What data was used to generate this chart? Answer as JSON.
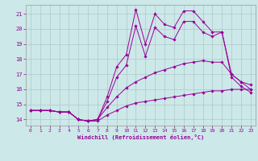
{
  "background_color": "#cce8e8",
  "grid_color": "#b0c8c8",
  "line_color": "#990099",
  "xlabel": "Windchill (Refroidissement éolien,°C)",
  "ylim": [
    13.6,
    21.6
  ],
  "xlim": [
    -0.5,
    23.5
  ],
  "yticks": [
    14,
    15,
    16,
    17,
    18,
    19,
    20,
    21
  ],
  "xticks": [
    0,
    1,
    2,
    3,
    4,
    5,
    6,
    7,
    8,
    9,
    10,
    11,
    12,
    13,
    14,
    15,
    16,
    17,
    18,
    19,
    20,
    21,
    22,
    23
  ],
  "series": [
    {
      "x": [
        0,
        1,
        2,
        3,
        4,
        5,
        6,
        7,
        8,
        9,
        10,
        11,
        12,
        13,
        14,
        15,
        16,
        17,
        18,
        19,
        20,
        21,
        22,
        23
      ],
      "y": [
        14.6,
        14.6,
        14.6,
        14.5,
        14.5,
        14.0,
        13.9,
        13.9,
        14.3,
        14.6,
        14.9,
        15.1,
        15.2,
        15.3,
        15.4,
        15.5,
        15.6,
        15.7,
        15.8,
        15.9,
        15.9,
        16.0,
        16.0,
        16.0
      ]
    },
    {
      "x": [
        0,
        1,
        2,
        3,
        4,
        5,
        6,
        7,
        8,
        9,
        10,
        11,
        12,
        13,
        14,
        15,
        16,
        17,
        18,
        19,
        20,
        21,
        22,
        23
      ],
      "y": [
        14.6,
        14.6,
        14.6,
        14.5,
        14.5,
        14.0,
        13.9,
        14.0,
        14.8,
        15.5,
        16.1,
        16.5,
        16.8,
        17.1,
        17.3,
        17.5,
        17.7,
        17.8,
        17.9,
        17.8,
        17.8,
        17.0,
        16.5,
        16.3
      ]
    },
    {
      "x": [
        0,
        1,
        2,
        3,
        4,
        5,
        6,
        7,
        8,
        9,
        10,
        11,
        12,
        13,
        14,
        15,
        16,
        17,
        18,
        19,
        20,
        21,
        22,
        23
      ],
      "y": [
        14.6,
        14.6,
        14.6,
        14.5,
        14.5,
        14.0,
        13.9,
        14.0,
        15.5,
        17.5,
        18.3,
        21.3,
        19.0,
        21.0,
        20.3,
        20.1,
        21.2,
        21.2,
        20.5,
        19.8,
        19.8,
        17.0,
        16.5,
        16.0
      ]
    },
    {
      "x": [
        0,
        1,
        2,
        3,
        4,
        5,
        6,
        7,
        8,
        9,
        10,
        11,
        12,
        13,
        14,
        15,
        16,
        17,
        18,
        19,
        20,
        21,
        22,
        23
      ],
      "y": [
        14.6,
        14.6,
        14.6,
        14.5,
        14.5,
        14.0,
        13.9,
        14.0,
        15.2,
        16.8,
        17.6,
        20.2,
        18.2,
        20.1,
        19.5,
        19.3,
        20.5,
        20.5,
        19.8,
        19.5,
        19.8,
        16.8,
        16.2,
        15.8
      ]
    }
  ]
}
